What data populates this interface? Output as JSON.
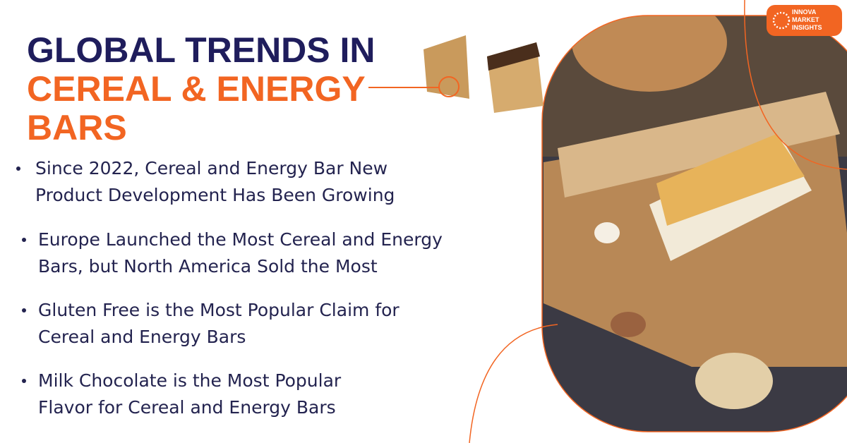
{
  "header": {
    "title_lines": [
      "GLOBAL TRENDS IN",
      "CEREAL & ENERGY",
      "BARS"
    ]
  },
  "logo": {
    "lines": [
      "INNOVA",
      "MARKET",
      "INSIGHTS"
    ]
  },
  "bullets": [
    {
      "lines": [
        "Since 2022, Cereal and Energy Bar New",
        "Product Development Has Been Growing"
      ]
    },
    {
      "lines": [
        "Europe Launched the Most Cereal and Energy",
        "Bars, but North America Sold the Most"
      ]
    },
    {
      "lines": [
        "Gluten Free is the Most Popular Claim for",
        "Cereal and Energy Bars"
      ]
    },
    {
      "lines": [
        "Milk Chocolate is the Most Popular",
        "Flavor for Cereal and Energy Bars"
      ]
    }
  ]
}
